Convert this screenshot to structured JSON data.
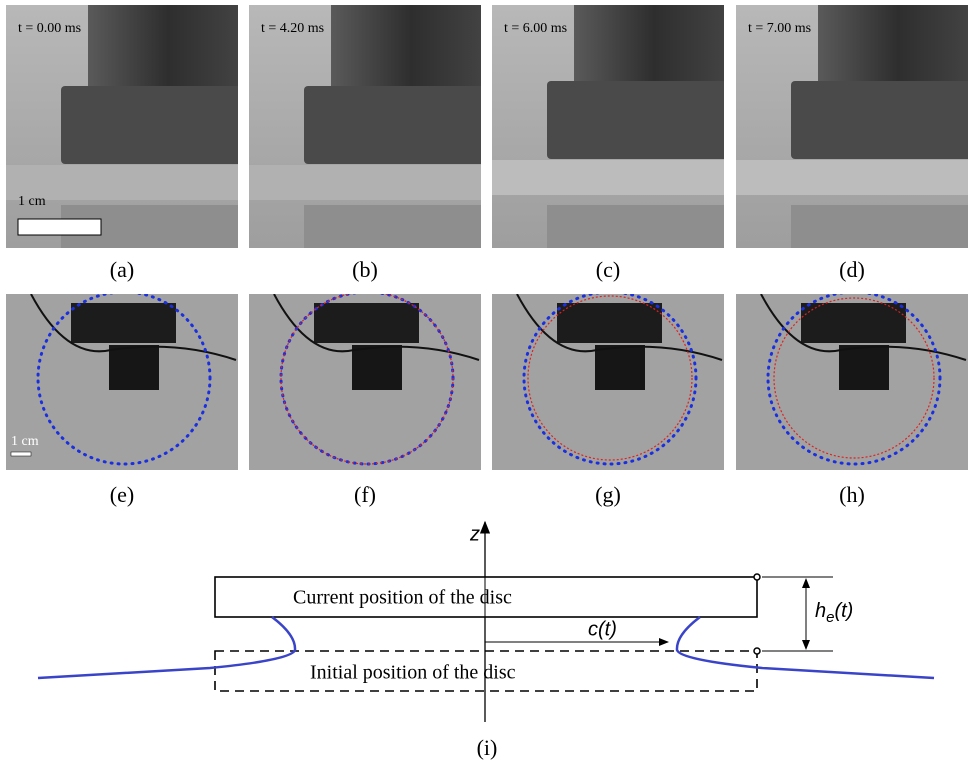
{
  "photo_row_1": {
    "times": [
      "t = 0.00 ms",
      "t = 4.20 ms",
      "t = 6.00 ms",
      "t = 7.00 ms"
    ],
    "scale_bar": "1 cm",
    "captions": [
      "(a)",
      "(b)",
      "(c)",
      "(d)"
    ]
  },
  "photo_row_2": {
    "scale_bar": "1 cm",
    "captions": [
      "(e)",
      "(f)",
      "(g)",
      "(h)"
    ]
  },
  "diagram": {
    "axis_label": "z",
    "current_label": "Current position of the disc",
    "initial_label": "Initial position of the disc",
    "c_label": "c(t)",
    "h_label": {
      "main": "h",
      "sub": "e",
      "rest": "(t)"
    },
    "caption": "(i)"
  }
}
